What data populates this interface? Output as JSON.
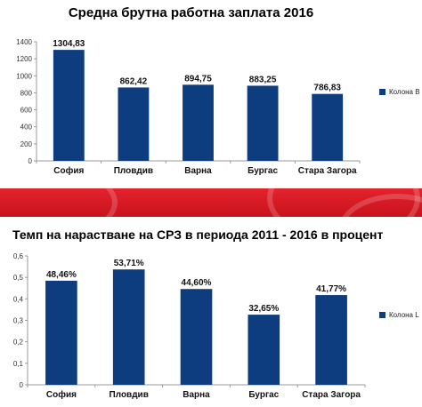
{
  "colors": {
    "bar": "#0d3d7f",
    "divider": "#d9181f"
  },
  "chart_data": [
    {
      "type": "bar",
      "title": "Средна брутна работна заплата 2016",
      "categories": [
        "София",
        "Пловдив",
        "Варна",
        "Бургас",
        "Стара Загора"
      ],
      "series": [
        {
          "name": "Колона B",
          "values": [
            1304.83,
            862.42,
            894.75,
            883.25,
            786.83
          ]
        }
      ],
      "data_labels": [
        "1304,83",
        "862,42",
        "894,75",
        "883,25",
        "786,83"
      ],
      "ylim": [
        0,
        1400
      ],
      "yticks": [
        0,
        200,
        400,
        600,
        800,
        1000,
        1200,
        1400
      ],
      "ytick_labels": [
        "0",
        "200",
        "400",
        "600",
        "800",
        "1000",
        "1200",
        "1400"
      ],
      "xlabel": "",
      "ylabel": "",
      "grid": false,
      "legend": "right"
    },
    {
      "type": "bar",
      "title": "Темп на нарастване на СРЗ в периода 2011 - 2016 в процент",
      "categories": [
        "София",
        "Пловдив",
        "Варна",
        "Бургас",
        "Стара Загора"
      ],
      "series": [
        {
          "name": "Колона L",
          "values": [
            0.4846,
            0.5371,
            0.446,
            0.3265,
            0.4177
          ]
        }
      ],
      "data_labels": [
        "48,46%",
        "53,71%",
        "44,60%",
        "32,65%",
        "41,77%"
      ],
      "ylim": [
        0,
        0.6
      ],
      "yticks": [
        0,
        0.1,
        0.2,
        0.3,
        0.4,
        0.5,
        0.6
      ],
      "ytick_labels": [
        "0",
        "0,1",
        "0,2",
        "0,3",
        "0,4",
        "0,5",
        "0,6"
      ],
      "xlabel": "",
      "ylabel": "",
      "grid": false,
      "legend": "right"
    }
  ]
}
